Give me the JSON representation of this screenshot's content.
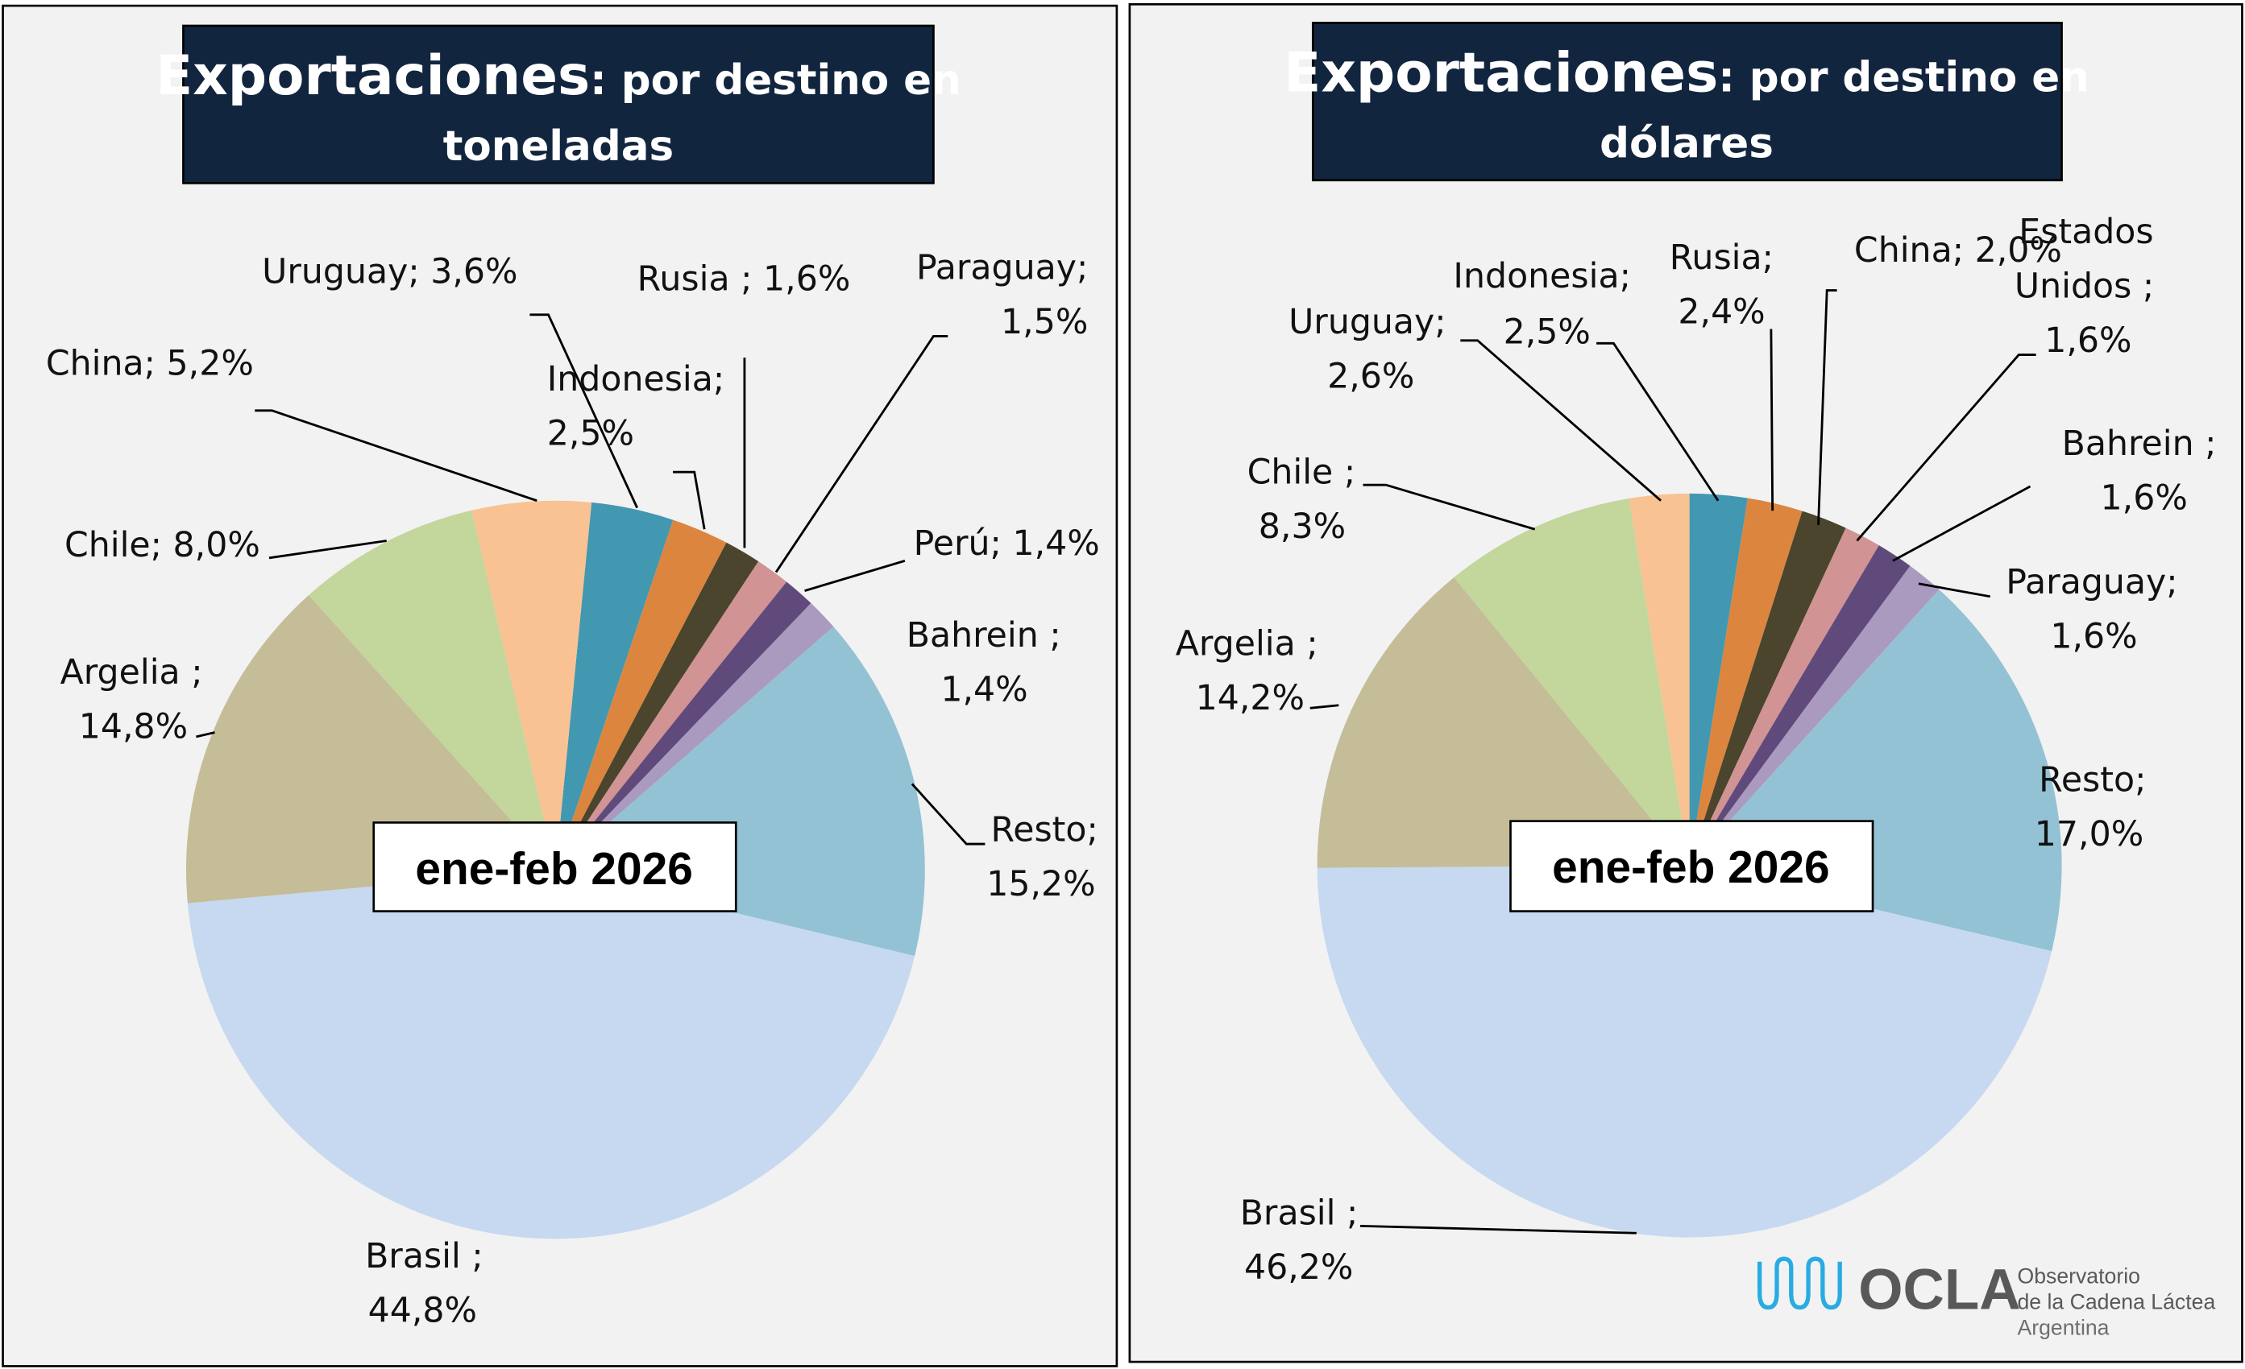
{
  "chart_data": [
    {
      "type": "pie",
      "title_bold": "Exportaciones",
      "title_rest_1": ": por destino en",
      "title_rest_2": "toneladas",
      "period_label": "ene-feb 2026",
      "unit": "%",
      "slices": [
        {
          "name": "Uruguay",
          "value": 3.6,
          "color": "#4298b0",
          "label_lines": [
            "Uruguay; 3,6%"
          ]
        },
        {
          "name": "Indonesia",
          "value": 2.5,
          "color": "#dc853f",
          "label_lines": [
            "Indonesia;",
            "2,5%"
          ]
        },
        {
          "name": "Rusia",
          "value": 1.6,
          "color": "#4a452c",
          "label_lines": [
            "Rusia ; 1,6%"
          ]
        },
        {
          "name": "Paraguay",
          "value": 1.5,
          "color": "#d19393",
          "label_lines": [
            "Paraguay;",
            "1,5%"
          ]
        },
        {
          "name": "Perú",
          "value": 1.4,
          "color": "#604a7b",
          "label_lines": [
            "Perú; 1,4%"
          ]
        },
        {
          "name": "Bahrein",
          "value": 1.4,
          "color": "#aa9abf",
          "label_lines": [
            "Bahrein ;",
            "1,4%"
          ]
        },
        {
          "name": "Resto",
          "value": 15.2,
          "color": "#93c2d4",
          "label_lines": [
            "Resto;",
            "15,2%"
          ]
        },
        {
          "name": "Brasil",
          "value": 44.8,
          "color": "#c6d9f0",
          "label_lines": [
            "Brasil ;",
            "44,8%"
          ]
        },
        {
          "name": "Argelia",
          "value": 14.8,
          "color": "#c4bd97",
          "label_lines": [
            "Argelia ;",
            "14,8%"
          ]
        },
        {
          "name": "Chile",
          "value": 8.0,
          "color": "#c3d69b",
          "label_lines": [
            "Chile; 8,0%"
          ]
        },
        {
          "name": "China",
          "value": 5.2,
          "color": "#f9c293",
          "label_lines": [
            "China; 5,2%"
          ]
        }
      ]
    },
    {
      "type": "pie",
      "title_bold": "Exportaciones",
      "title_rest_1": ": por destino en",
      "title_rest_2": "dólares",
      "period_label": "ene-feb 2026",
      "unit": "%",
      "slices": [
        {
          "name": "Indonesia",
          "value": 2.5,
          "color": "#4298b0",
          "label_lines": [
            "Indonesia;",
            "2,5%"
          ]
        },
        {
          "name": "Rusia",
          "value": 2.4,
          "color": "#dc853f",
          "label_lines": [
            "Rusia;",
            "2,4%"
          ]
        },
        {
          "name": "China",
          "value": 2.0,
          "color": "#4a452c",
          "label_lines": [
            "China; 2,0%"
          ]
        },
        {
          "name": "Estados Unidos",
          "value": 1.6,
          "color": "#d19393",
          "label_lines": [
            "Estados",
            "Unidos ;",
            "1,6%"
          ]
        },
        {
          "name": "Bahrein",
          "value": 1.6,
          "color": "#604a7b",
          "label_lines": [
            "Bahrein ;",
            "1,6%"
          ]
        },
        {
          "name": "Paraguay",
          "value": 1.6,
          "color": "#aa9abf",
          "label_lines": [
            "Paraguay;",
            "1,6%"
          ]
        },
        {
          "name": "Resto",
          "value": 17.0,
          "color": "#93c2d4",
          "label_lines": [
            "Resto;",
            "17,0%"
          ]
        },
        {
          "name": "Brasil",
          "value": 46.2,
          "color": "#c6d9f0",
          "label_lines": [
            "Brasil ;",
            "46,2%"
          ]
        },
        {
          "name": "Argelia",
          "value": 14.2,
          "color": "#c4bd97",
          "label_lines": [
            "Argelia ;",
            "14,2%"
          ]
        },
        {
          "name": "Chile",
          "value": 8.3,
          "color": "#c3d69b",
          "label_lines": [
            "Chile ;",
            "8,3%"
          ]
        },
        {
          "name": "Uruguay",
          "value": 2.6,
          "color": "#f9c293",
          "label_lines": [
            "Uruguay;",
            "2,6%"
          ]
        }
      ]
    }
  ],
  "logo": {
    "name": "OCLA",
    "line1": "Observatorio",
    "line2": "de la Cadena Láctea",
    "line3": "Argentina"
  },
  "colors": {
    "background": "#f2f2f2",
    "title_bg": "#12253f"
  }
}
